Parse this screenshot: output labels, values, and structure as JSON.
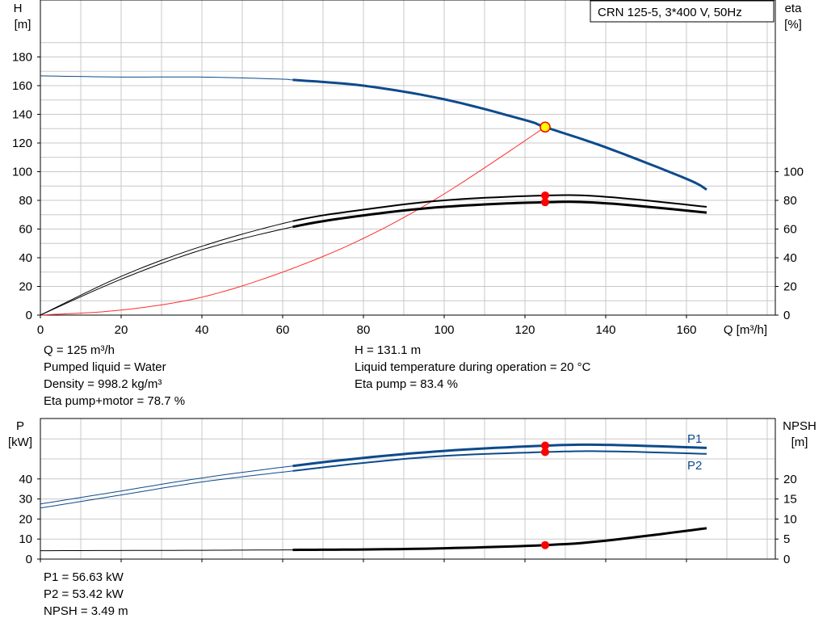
{
  "header": {
    "title": "CRN 125-5, 3*400 V, 50Hz"
  },
  "colors": {
    "pump_curve": "#0d4a8c",
    "system_curve": "#ff2d2d",
    "efficiency": "#000000",
    "duty_point_fill": "#ffff00",
    "marker": "#ff0000",
    "grid": "#c8c8c8",
    "series_label": "#0d4a8c"
  },
  "top_panel": {
    "y_left_label_line1": "H",
    "y_left_label_line2": "[m]",
    "y_right_label_line1": "eta",
    "y_right_label_line2": "[%]",
    "x_label": "Q [m³/h]"
  },
  "bottom_panel": {
    "y_left_label_line1": "P",
    "y_left_label_line2": "[kW]",
    "y_right_label_line1": "NPSH",
    "y_right_label_line2": "[m]",
    "series_labels": [
      "P1",
      "P2"
    ]
  },
  "info_top": {
    "left": [
      "Q = 125 m³/h",
      "Pumped liquid = Water",
      "Density = 998.2 kg/m³",
      "Eta pump+motor = 78.7 %"
    ],
    "right": [
      "H = 131.1 m",
      "Liquid temperature during operation = 20 °C",
      "Eta pump = 83.4 %"
    ]
  },
  "info_bottom": [
    "P1 = 56.63 kW",
    "P2 = 53.42 kW",
    "NPSH = 3.49 m"
  ],
  "chart_data": [
    {
      "type": "line",
      "x_ticks": [
        0,
        20,
        40,
        60,
        80,
        100,
        120,
        140,
        160
      ],
      "xlim": [
        0,
        180
      ],
      "y_left_ticks": [
        0,
        20,
        40,
        60,
        80,
        100,
        120,
        140,
        160,
        180
      ],
      "ylim_left": [
        0,
        190
      ],
      "y_right_ticks": [
        0,
        20,
        40,
        60,
        80,
        100
      ],
      "grid": true,
      "duty_point": {
        "Q": 125,
        "H": 131.1,
        "eta_pump": 83.4,
        "eta_total": 78.7
      },
      "series": [
        {
          "id": "H",
          "axis": "left",
          "thin_until": 62.5,
          "x": [
            0,
            20,
            40,
            60,
            62.5,
            80,
            100,
            120,
            125,
            140,
            160,
            165
          ],
          "values": [
            166.8,
            166.0,
            166.0,
            164.5,
            164.0,
            160.0,
            150.5,
            136.0,
            131.1,
            117.0,
            95.0,
            87.5
          ]
        },
        {
          "id": "system",
          "axis": "left",
          "x": [
            0,
            20,
            40,
            60,
            80,
            100,
            125
          ],
          "values": [
            0,
            3.5,
            12.5,
            30.0,
            53.5,
            84.5,
            131.1
          ]
        },
        {
          "id": "eta_pump",
          "axis": "right",
          "thin_until": 62.5,
          "x": [
            0,
            20,
            40,
            62.5,
            80,
            100,
            125,
            140,
            165
          ],
          "values": [
            0,
            27.0,
            48.0,
            65.5,
            73.5,
            80.0,
            83.4,
            82.5,
            75.5
          ]
        },
        {
          "id": "eta_total",
          "axis": "right",
          "thin_until": 62.5,
          "x": [
            0,
            20,
            40,
            62.5,
            80,
            100,
            125,
            140,
            165
          ],
          "values": [
            0,
            25.0,
            45.5,
            61.5,
            69.5,
            75.5,
            78.7,
            78.0,
            71.5
          ]
        }
      ]
    },
    {
      "type": "line",
      "xlim": [
        0,
        180
      ],
      "y_left_ticks": [
        0,
        10,
        20,
        30,
        40
      ],
      "ylim_left": [
        0,
        60
      ],
      "y_right_ticks": [
        0,
        5,
        10,
        15,
        20
      ],
      "ylim_right": [
        0,
        30
      ],
      "grid": true,
      "series": [
        {
          "id": "P1",
          "axis": "left",
          "thin_until": 62.5,
          "x": [
            0,
            20,
            40,
            62.5,
            80,
            100,
            125,
            140,
            165
          ],
          "values": [
            27.5,
            34.0,
            40.5,
            46.5,
            50.5,
            54.0,
            56.63,
            57.0,
            55.5
          ]
        },
        {
          "id": "P2",
          "axis": "left",
          "thin_until": 62.5,
          "x": [
            0,
            20,
            40,
            62.5,
            80,
            100,
            125,
            140,
            165
          ],
          "values": [
            25.5,
            32.0,
            38.5,
            44.0,
            48.0,
            51.5,
            53.42,
            53.8,
            52.5
          ]
        },
        {
          "id": "NPSH",
          "axis": "right",
          "thin_until": 62.5,
          "x": [
            0,
            40,
            62.5,
            80,
            100,
            125,
            140,
            165
          ],
          "values": [
            2.1,
            2.2,
            2.3,
            2.4,
            2.7,
            3.49,
            4.6,
            7.7
          ]
        }
      ]
    }
  ]
}
